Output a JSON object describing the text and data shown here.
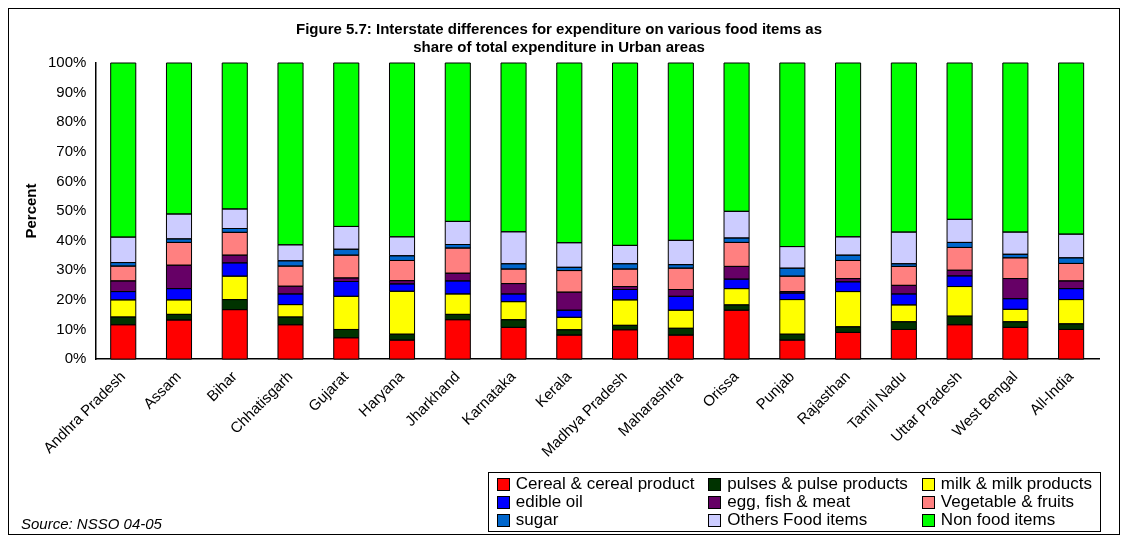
{
  "chart_data": {
    "type": "bar",
    "stacked": true,
    "title": "Figure 5.7: Interstate differences for expenditure on various food items as share of total expenditure in Urban areas",
    "ylabel": "Percent",
    "categories": [
      "Andhra Pradesh",
      "Assam",
      "Bihar",
      "Chhatisgarh",
      "Gujarat",
      "Haryana",
      "Jharkhand",
      "Karnataka",
      "Kerala",
      "Madhya Pradesh",
      "Maharashtra",
      "Orissa",
      "Punjab",
      "Rajasthan",
      "Tamil Nadu",
      "Uttar Pradesh",
      "West Bengal",
      "All-India"
    ],
    "series": [
      {
        "name": "Cereal & cereal product",
        "color": "#ff0000",
        "values": [
          11.6,
          13.2,
          16.7,
          11.6,
          7.2,
          6.4,
          13.3,
          10.7,
          8.1,
          9.9,
          8.1,
          16.5,
          6.4,
          9,
          10,
          11.6,
          10.7,
          10
        ]
      },
      {
        "name": "pulses & pulse products",
        "color": "#003300",
        "values": [
          2.6,
          1.9,
          3.4,
          2.6,
          2.8,
          2,
          1.8,
          2.6,
          1.8,
          1.5,
          2.3,
          1.8,
          2,
          1.9,
          2.6,
          2.9,
          1.9,
          1.9
        ]
      },
      {
        "name": "milk & milk products",
        "color": "#ffff00",
        "values": [
          5.8,
          4.9,
          7.9,
          4.2,
          11.2,
          14.5,
          6.9,
          6.1,
          4.2,
          8.6,
          6.1,
          5.5,
          11.7,
          11.9,
          5.7,
          10,
          4.2,
          8.2
        ]
      },
      {
        "name": "edible oil",
        "color": "#0000ff",
        "values": [
          2.8,
          3.8,
          4.5,
          3.6,
          5,
          2.5,
          4.4,
          2.6,
          2.4,
          3.5,
          4.7,
          3.2,
          2.2,
          3.3,
          3.7,
          3.6,
          3.6,
          3.7
        ]
      },
      {
        "name": "egg, fish & meat",
        "color": "#660066",
        "values": [
          3.6,
          7.9,
          2.6,
          2.6,
          1.2,
          1.1,
          2.6,
          3.5,
          6.1,
          1,
          2.3,
          4.3,
          0.5,
          1.1,
          2.9,
          1.9,
          6.8,
          2.6
        ]
      },
      {
        "name": "Vegetable & fruits",
        "color": "#ff8080",
        "values": [
          5,
          7.7,
          7.7,
          6.8,
          7.7,
          6.8,
          8.5,
          4.9,
          7.3,
          5.9,
          7.2,
          8.1,
          5.2,
          6.1,
          6.4,
          7.7,
          7,
          5.9
        ]
      },
      {
        "name": "sugar",
        "color": "#0066cc",
        "values": [
          1.2,
          1.2,
          1.3,
          1.8,
          2,
          1.6,
          1.2,
          1.8,
          1.1,
          1.8,
          1.2,
          1.5,
          2.7,
          1.8,
          0.9,
          1.7,
          1.2,
          1.9
        ]
      },
      {
        "name": "Others Food items",
        "color": "#ccccff",
        "values": [
          8.6,
          8.4,
          6.6,
          5.4,
          7.7,
          6.4,
          7.8,
          10.8,
          8.3,
          6.2,
          8.2,
          9,
          7.3,
          6.2,
          10.7,
          7.8,
          7.5,
          8
        ]
      },
      {
        "name": "Non food items",
        "color": "#00ff00",
        "values": [
          58.8,
          51,
          49.3,
          61.4,
          55.2,
          58.7,
          53.5,
          57,
          60.7,
          61.6,
          59.9,
          50.1,
          62,
          58.7,
          57.1,
          52.8,
          57.1,
          57.8
        ]
      }
    ],
    "ylim": [
      0,
      100
    ],
    "yticks": [
      {
        "value": 0,
        "label": "0%"
      },
      {
        "value": 10,
        "label": "10%"
      },
      {
        "value": 20,
        "label": "20%"
      },
      {
        "value": 30,
        "label": "30%"
      },
      {
        "value": 40,
        "label": "40%"
      },
      {
        "value": 50,
        "label": "50%"
      },
      {
        "value": 60,
        "label": "60%"
      },
      {
        "value": 70,
        "label": "70%"
      },
      {
        "value": 80,
        "label": "80%"
      },
      {
        "value": 90,
        "label": "90%"
      },
      {
        "value": 100,
        "label": "100%"
      }
    ],
    "grid": false,
    "legend": "bottom right",
    "annotations": [
      "Source: NSSO 04-05"
    ]
  }
}
